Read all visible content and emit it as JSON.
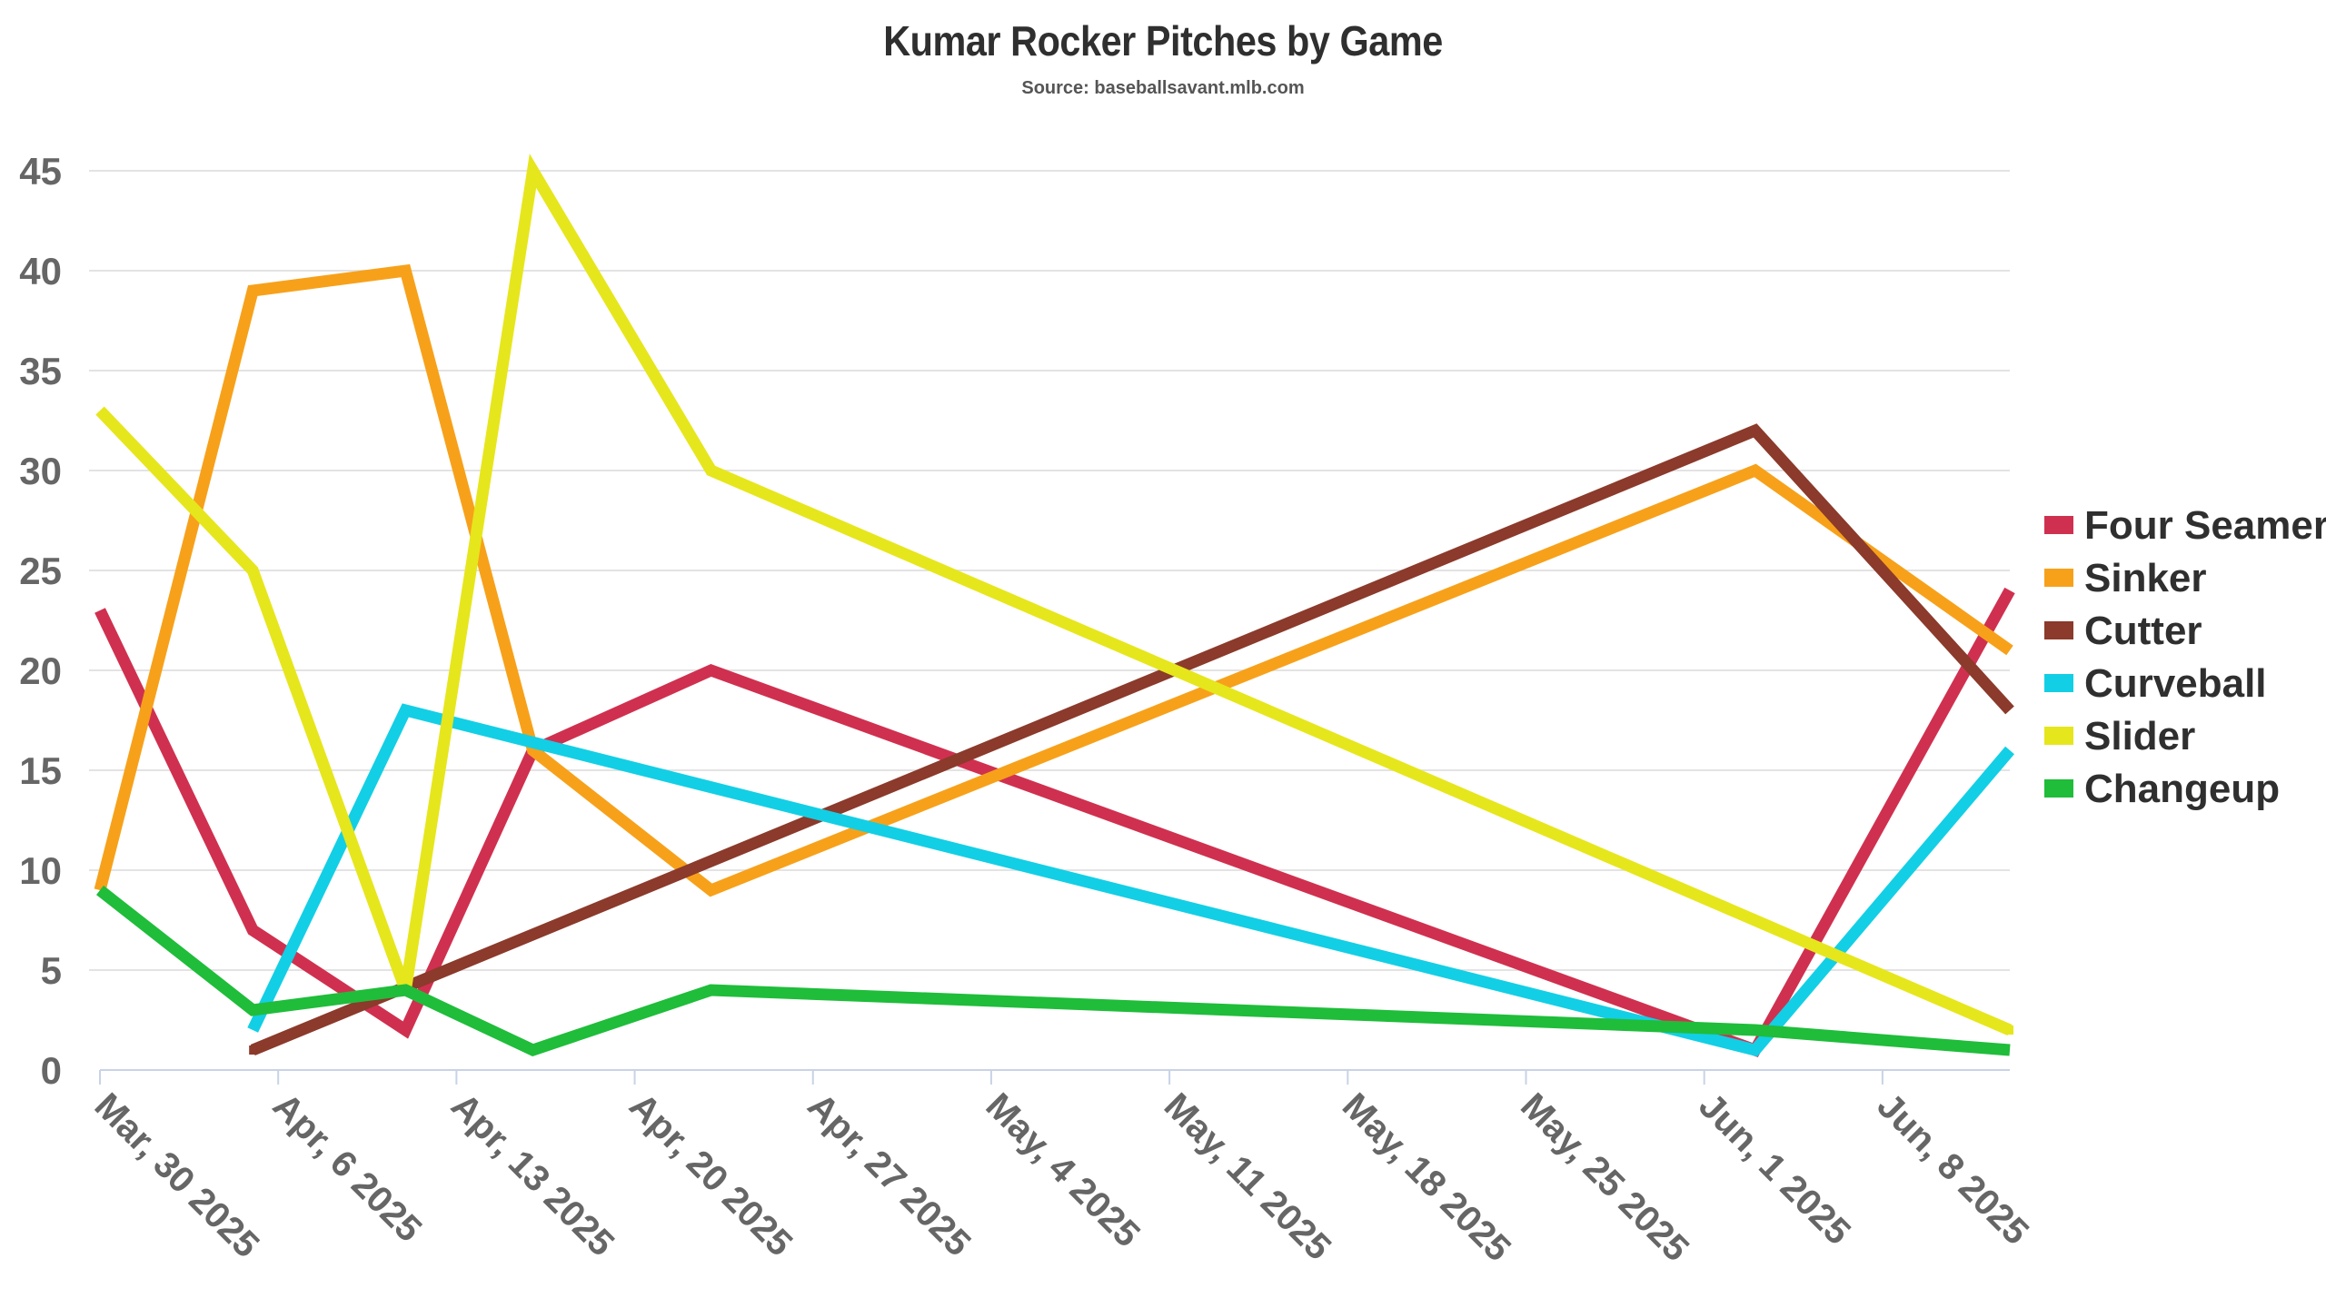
{
  "chart_data": {
    "type": "line",
    "title": "Kumar Rocker Pitches by Game",
    "subtitle": "Source: baseballsavant.mlb.com",
    "xlabel": "",
    "ylabel": "",
    "ylim": [
      0,
      45
    ],
    "yticks": [
      0,
      5,
      10,
      15,
      20,
      25,
      30,
      35,
      40,
      45
    ],
    "xlim": [
      "2025-03-30",
      "2025-06-13"
    ],
    "xticks": [
      {
        "date": "2025-03-30",
        "label": "Mar, 30 2025"
      },
      {
        "date": "2025-04-06",
        "label": "Apr, 6 2025"
      },
      {
        "date": "2025-04-13",
        "label": "Apr, 13 2025"
      },
      {
        "date": "2025-04-20",
        "label": "Apr, 20 2025"
      },
      {
        "date": "2025-04-27",
        "label": "Apr, 27 2025"
      },
      {
        "date": "2025-05-04",
        "label": "May, 4 2025"
      },
      {
        "date": "2025-05-11",
        "label": "May, 11 2025"
      },
      {
        "date": "2025-05-18",
        "label": "May, 18 2025"
      },
      {
        "date": "2025-05-25",
        "label": "May, 25 2025"
      },
      {
        "date": "2025-06-01",
        "label": "Jun, 1 2025"
      },
      {
        "date": "2025-06-08",
        "label": "Jun, 8 2025"
      }
    ],
    "grid": true,
    "legend_position": "right",
    "series": [
      {
        "name": "Four Seamer",
        "color": "#d0304f",
        "points": [
          {
            "x": "2025-03-30",
            "y": 23
          },
          {
            "x": "2025-04-05",
            "y": 7
          },
          {
            "x": "2025-04-11",
            "y": 2
          },
          {
            "x": "2025-04-16",
            "y": 16
          },
          {
            "x": "2025-04-23",
            "y": 20
          },
          {
            "x": "2025-06-03",
            "y": 1
          },
          {
            "x": "2025-06-13",
            "y": 24
          }
        ]
      },
      {
        "name": "Sinker",
        "color": "#f7a11a",
        "points": [
          {
            "x": "2025-03-30",
            "y": 9
          },
          {
            "x": "2025-04-05",
            "y": 39
          },
          {
            "x": "2025-04-11",
            "y": 40
          },
          {
            "x": "2025-04-16",
            "y": 16
          },
          {
            "x": "2025-04-23",
            "y": 9
          },
          {
            "x": "2025-06-03",
            "y": 30
          },
          {
            "x": "2025-06-13",
            "y": 21
          }
        ]
      },
      {
        "name": "Cutter",
        "color": "#8b3a2b",
        "points": [
          {
            "x": "2025-04-05",
            "y": 1
          },
          {
            "x": "2025-06-03",
            "y": 32
          },
          {
            "x": "2025-06-13",
            "y": 18
          }
        ]
      },
      {
        "name": "Curveball",
        "color": "#12cfe5",
        "points": [
          {
            "x": "2025-04-05",
            "y": 2
          },
          {
            "x": "2025-04-11",
            "y": 18
          },
          {
            "x": "2025-06-03",
            "y": 1
          },
          {
            "x": "2025-06-13",
            "y": 16
          }
        ]
      },
      {
        "name": "Slider",
        "color": "#e6e61c",
        "points": [
          {
            "x": "2025-03-30",
            "y": 33
          },
          {
            "x": "2025-04-05",
            "y": 25
          },
          {
            "x": "2025-04-11",
            "y": 4
          },
          {
            "x": "2025-04-16",
            "y": 45
          },
          {
            "x": "2025-04-23",
            "y": 30
          },
          {
            "x": "2025-06-13",
            "y": 2
          }
        ]
      },
      {
        "name": "Changeup",
        "color": "#1fbd3a",
        "points": [
          {
            "x": "2025-03-30",
            "y": 9
          },
          {
            "x": "2025-04-05",
            "y": 3
          },
          {
            "x": "2025-04-11",
            "y": 4
          },
          {
            "x": "2025-04-16",
            "y": 1
          },
          {
            "x": "2025-04-23",
            "y": 4
          },
          {
            "x": "2025-06-03",
            "y": 2
          },
          {
            "x": "2025-06-13",
            "y": 1
          }
        ]
      }
    ]
  }
}
